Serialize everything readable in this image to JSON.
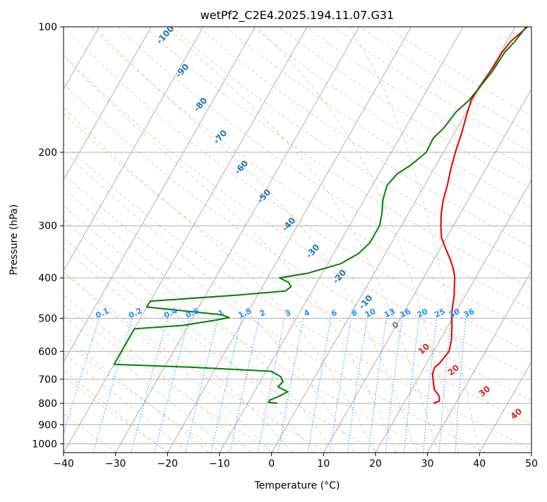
{
  "chart_data": {
    "type": "line",
    "title": "wetPf2_C2E4.2025.194.11.07.G31",
    "xlabel": "Temperature (°C)",
    "ylabel": "Pressure (hPa)",
    "xlim": [
      -40,
      50
    ],
    "ylim": [
      1050,
      100
    ],
    "y_scale": "log",
    "x_ticks": [
      -40,
      -30,
      -20,
      -10,
      0,
      10,
      20,
      30,
      40,
      50
    ],
    "y_ticks": [
      100,
      200,
      300,
      400,
      500,
      600,
      700,
      800,
      900,
      1000
    ],
    "grid": true,
    "skew_x": true,
    "series": [
      {
        "color": "#e00000",
        "points": [
          [
            800,
            25.7
          ],
          [
            790,
            26.6
          ],
          [
            770,
            26.1
          ],
          [
            740,
            24.3
          ],
          [
            700,
            23.0
          ],
          [
            680,
            22.3
          ],
          [
            655,
            22.0
          ],
          [
            640,
            22.5
          ],
          [
            600,
            23.0
          ],
          [
            560,
            22.1
          ],
          [
            520,
            20.7
          ],
          [
            480,
            19.1
          ],
          [
            440,
            17.8
          ],
          [
            420,
            16.9
          ],
          [
            400,
            16.0
          ],
          [
            380,
            14.7
          ],
          [
            360,
            13.0
          ],
          [
            340,
            11.0
          ],
          [
            320,
            9.0
          ],
          [
            300,
            7.6
          ],
          [
            280,
            6.3
          ],
          [
            260,
            5.2
          ],
          [
            240,
            4.4
          ],
          [
            220,
            3.3
          ],
          [
            200,
            2.3
          ],
          [
            180,
            1.4
          ],
          [
            165,
            0.5
          ],
          [
            150,
            -0.4
          ],
          [
            140,
            -0.3
          ],
          [
            125,
            0.2
          ],
          [
            115,
            0.3
          ],
          [
            108,
            0.8
          ],
          [
            100,
            2.4
          ]
        ]
      },
      {
        "color": "#008000",
        "points": [
          [
            800,
            -4.3
          ],
          [
            795,
            -6.1
          ],
          [
            785,
            -6.1
          ],
          [
            770,
            -4.8
          ],
          [
            750,
            -3.6
          ],
          [
            730,
            -6.0
          ],
          [
            710,
            -5.6
          ],
          [
            690,
            -6.6
          ],
          [
            670,
            -9.0
          ],
          [
            655,
            -25.1
          ],
          [
            645,
            -40.0
          ],
          [
            530,
            -40.0
          ],
          [
            520,
            -31.0
          ],
          [
            505,
            -25.3
          ],
          [
            498,
            -23.0
          ],
          [
            490,
            -25.0
          ],
          [
            470,
            -40.0
          ],
          [
            455,
            -40.0
          ],
          [
            440,
            -24.0
          ],
          [
            430,
            -15.1
          ],
          [
            420,
            -14.5
          ],
          [
            410,
            -15.5
          ],
          [
            400,
            -17.7
          ],
          [
            390,
            -12.8
          ],
          [
            370,
            -7.5
          ],
          [
            350,
            -5.2
          ],
          [
            330,
            -4.2
          ],
          [
            300,
            -4.2
          ],
          [
            280,
            -5.1
          ],
          [
            260,
            -6.4
          ],
          [
            240,
            -7.2
          ],
          [
            225,
            -6.5
          ],
          [
            215,
            -4.9
          ],
          [
            200,
            -3.3
          ],
          [
            185,
            -3.5
          ],
          [
            175,
            -2.6
          ],
          [
            160,
            -2.0
          ],
          [
            150,
            -0.8
          ],
          [
            138,
            -0.1
          ],
          [
            128,
            0.5
          ],
          [
            115,
            0.8
          ],
          [
            108,
            1.6
          ],
          [
            102,
            2.0
          ],
          [
            100,
            2.1
          ]
        ]
      }
    ],
    "dry_adiabat_labels": [
      "-100",
      "-90",
      "-80",
      "-70",
      "-60",
      "-50",
      "-40",
      "-30",
      "-20",
      "-10"
    ],
    "moist_adiabat_labels": [
      "0",
      "10",
      "20",
      "30",
      "40"
    ],
    "mixing_ratio_labels": [
      "0.1",
      "0.2",
      "0.4",
      "0.6",
      "1",
      "1.5",
      "2",
      "3",
      "4",
      "6",
      "8",
      "10",
      "13",
      "16",
      "20",
      "25",
      "30",
      "36"
    ],
    "colors": {
      "temperature": "#e00000",
      "dewpoint": "#008000",
      "dry_adiabat": "#f4a582",
      "moist_adiabat": "#74c476",
      "mixing_ratio": "#1f8fff",
      "grid": "#b0b0b0",
      "dry_label": "#1f77b4",
      "moist_label_warm": "#d62728",
      "moist_label_zero": "#808080",
      "mixing_label": "#1f8fff"
    }
  }
}
